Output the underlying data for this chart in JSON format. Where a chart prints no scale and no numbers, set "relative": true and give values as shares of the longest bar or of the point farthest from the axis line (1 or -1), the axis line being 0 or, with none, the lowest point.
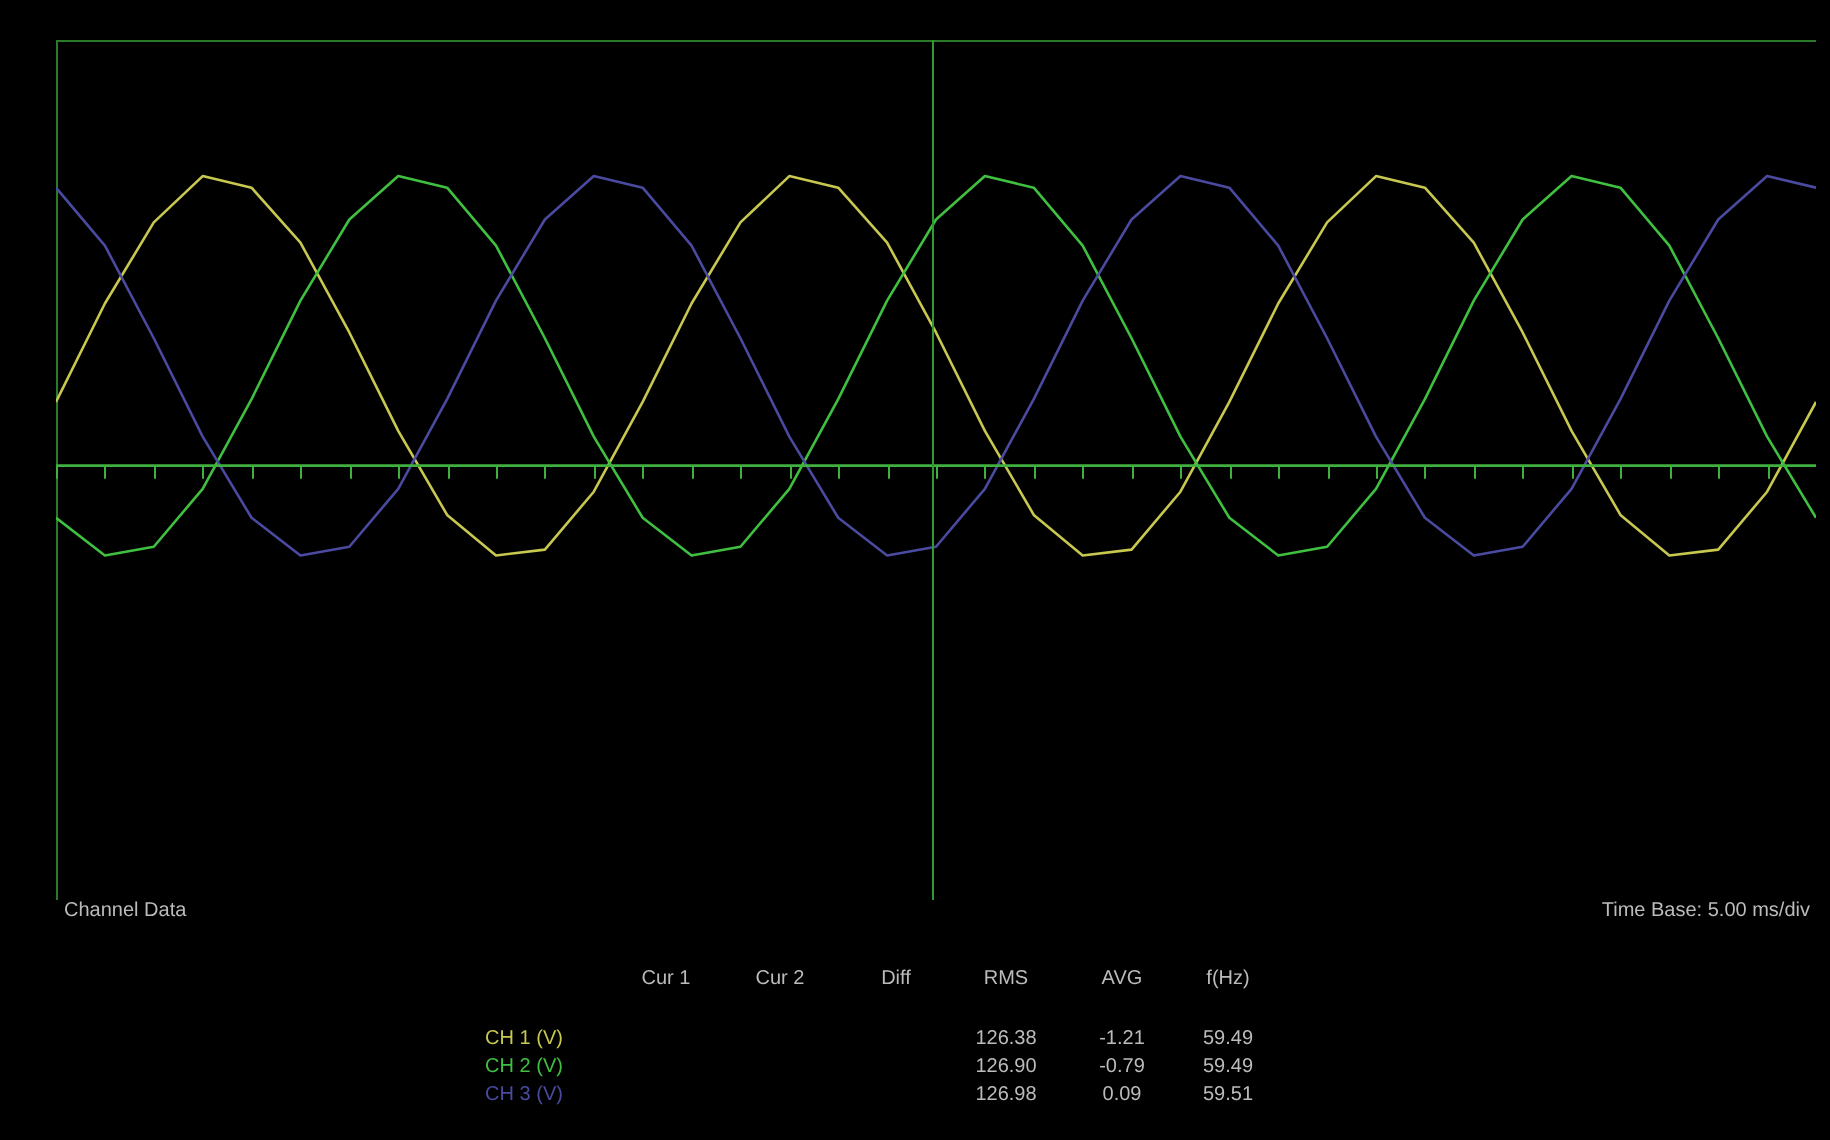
{
  "chart_data": {
    "type": "line",
    "relative": true,
    "categories": [
      null,
      null,
      null,
      null,
      null,
      null,
      null,
      null,
      null,
      null,
      null,
      null,
      null,
      null,
      null,
      null,
      null,
      null,
      null,
      null,
      null,
      null,
      null,
      null,
      null,
      null,
      null,
      null,
      null,
      null,
      null,
      null,
      null,
      null,
      null,
      null,
      null
    ],
    "series": [
      {
        "color": "#c8c850",
        "values": [
          0.22,
          0.56,
          0.84,
          1,
          0.96,
          0.77,
          0.46,
          0.12,
          -0.17,
          -0.31,
          -0.29,
          -0.09,
          0.22,
          0.56,
          0.84,
          1,
          0.96,
          0.77,
          0.46,
          0.12,
          -0.17,
          -0.31,
          -0.29,
          -0.09,
          0.22,
          0.56,
          0.84,
          1,
          0.96,
          0.77,
          0.46,
          0.12,
          -0.17,
          -0.31,
          -0.29,
          -0.09,
          0.22
        ]
      },
      {
        "color": "#40c040",
        "values": [
          -0.18,
          -0.31,
          -0.28,
          -0.08,
          0.23,
          0.57,
          0.85,
          1,
          0.96,
          0.76,
          0.44,
          0.1,
          -0.18,
          -0.31,
          -0.28,
          -0.08,
          0.23,
          0.57,
          0.85,
          1,
          0.96,
          0.76,
          0.44,
          0.1,
          -0.18,
          -0.31,
          -0.28,
          -0.08,
          0.23,
          0.57,
          0.85,
          1,
          0.96,
          0.76,
          0.44,
          0.1,
          -0.18
        ]
      },
      {
        "color": "#4a4aa0",
        "values": [
          0.96,
          0.76,
          0.44,
          0.1,
          -0.18,
          -0.31,
          -0.28,
          -0.08,
          0.23,
          0.57,
          0.85,
          1,
          0.96,
          0.76,
          0.44,
          0.1,
          -0.18,
          -0.31,
          -0.28,
          -0.08,
          0.23,
          0.57,
          0.85,
          1,
          0.96,
          0.76,
          0.44,
          0.1,
          -0.18,
          -0.31,
          -0.28,
          -0.08,
          0.23,
          0.57,
          0.85,
          1,
          0.96
        ]
      }
    ],
    "grid": false,
    "marker": "none",
    "line_style": "solid",
    "ref_lines": [
      {
        "axis": "y",
        "value": 0,
        "color": "#40b040"
      }
    ],
    "annotations": [
      "Channel Data",
      "Time Base: 5.00 ms/div",
      "Cur 1",
      "Cur 2",
      "Diff",
      "RMS",
      "AVG",
      "f(Hz)",
      "CH 1 (V)",
      "126.38",
      "-1.21",
      "59.49",
      "CH 2 (V)",
      "126.90",
      "-0.79",
      "59.49",
      "CH 3 (V)",
      "126.98",
      "0.09",
      "59.51"
    ]
  }
}
